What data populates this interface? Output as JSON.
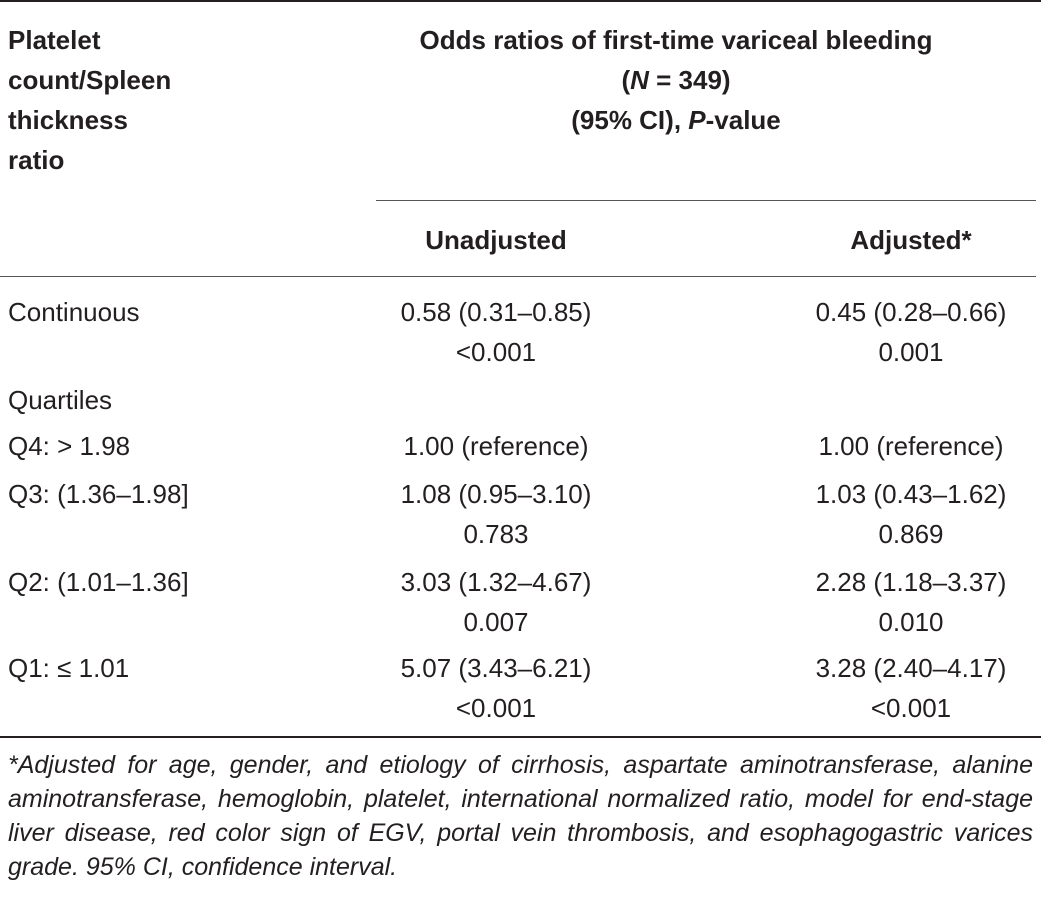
{
  "table": {
    "row_header": [
      "Platelet",
      "count/Spleen",
      "thickness",
      "ratio"
    ],
    "group_header": {
      "line1": "Odds ratios of first-time variceal bleeding",
      "n_open": "(",
      "n_var": "N",
      "n_rest": " = 349)",
      "ci_pre": "(95% CI), ",
      "p_var": "P",
      "p_rest": "-value"
    },
    "col_unadjusted": "Unadjusted",
    "col_adjusted": "Adjusted*",
    "rows": [
      {
        "label": "Continuous",
        "unadj": "0.58 (0.31–0.85)",
        "unadj_p": "<0.001",
        "adj": "0.45 (0.28–0.66)",
        "adj_p": "0.001"
      },
      {
        "label": "Quartiles"
      },
      {
        "label": "Q4: > 1.98",
        "unadj": "1.00 (reference)",
        "adj": "1.00 (reference)"
      },
      {
        "label": "Q3: (1.36–1.98]",
        "unadj": "1.08 (0.95–3.10)",
        "unadj_p": "0.783",
        "adj": "1.03 (0.43–1.62)",
        "adj_p": "0.869"
      },
      {
        "label": "Q2: (1.01–1.36]",
        "unadj": "3.03 (1.32–4.67)",
        "unadj_p": "0.007",
        "adj": "2.28 (1.18–3.37)",
        "adj_p": "0.010"
      },
      {
        "label": "Q1: ≤ 1.01",
        "unadj": "5.07 (3.43–6.21)",
        "unadj_p": "<0.001",
        "adj": "3.28 (2.40–4.17)",
        "adj_p": "<0.001"
      }
    ]
  },
  "footnote": "*Adjusted for age, gender, and etiology of cirrhosis, aspartate aminotransferase, alanine aminotransferase, hemoglobin, platelet, international normalized ratio, model for end-stage liver disease, red color sign of EGV, portal vein thrombosis, and esophagogastric varices grade. 95% CI, confidence interval."
}
